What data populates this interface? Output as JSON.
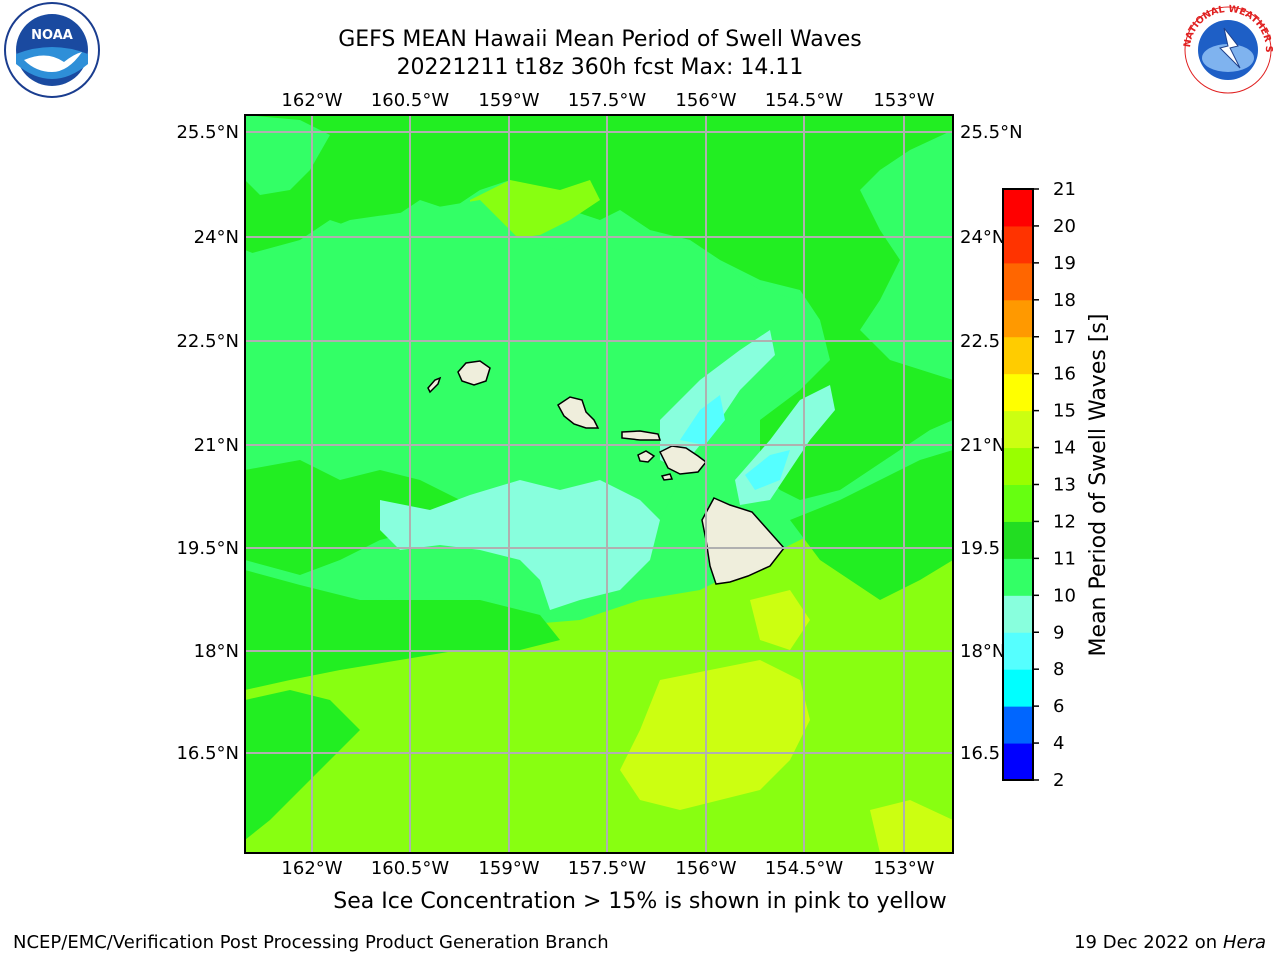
{
  "title_line1": "GEFS MEAN Hawaii Mean Period of Swell Waves",
  "title_line2": "20221211 t18z 360h fcst   Max: 14.11",
  "logos": {
    "left": "noaa-logo",
    "right": "nws-logo",
    "right_text": "NATIONAL WEATHER SERVICE"
  },
  "map": {
    "lon_labels": [
      "162°W",
      "160.5°W",
      "159°W",
      "157.5°W",
      "156°W",
      "154.5°W",
      "153°W"
    ],
    "lat_labels": [
      "25.5°N",
      "24°N",
      "22.5°N",
      "21°N",
      "19.5°N",
      "18°N",
      "16.5°N"
    ],
    "lat_labels_right": [
      "25.5°N",
      "24°N",
      "22.5",
      "21°N",
      "19.5",
      "18°N",
      "16.5"
    ],
    "gridlines": true,
    "colors": {
      "ocean_swell_10_11": "#33ff66",
      "ocean_swell_11_12": "#22ee22",
      "ocean_swell_12_13": "#88ff11",
      "ocean_swell_13_14": "#ccff11",
      "ocean_swell_9_10": "#88ffdd",
      "ocean_swell_8_9": "#55ffff",
      "land": "#efeedc",
      "grid": "#b0b0b0"
    }
  },
  "colorbar": {
    "label": "Mean Period of Swell Waves [s]",
    "ticks": [
      "2",
      "4",
      "6",
      "8",
      "9",
      "10",
      "11",
      "12",
      "13",
      "14",
      "15",
      "16",
      "17",
      "18",
      "19",
      "20",
      "21"
    ],
    "colors": [
      "#0000ff",
      "#0066ff",
      "#00ffff",
      "#55ffff",
      "#88ffdd",
      "#33ff66",
      "#22dd22",
      "#66ff11",
      "#99ff00",
      "#ccff11",
      "#ffff00",
      "#ffcc00",
      "#ff9900",
      "#ff6600",
      "#ff3300",
      "#ff0000"
    ]
  },
  "footnote": "Sea Ice Concentration > 15% is shown in pink to yellow",
  "credit": "NCEP/EMC/Verification Post Processing Product Generation Branch",
  "date_text": "19 Dec 2022 on",
  "host": "Hera"
}
